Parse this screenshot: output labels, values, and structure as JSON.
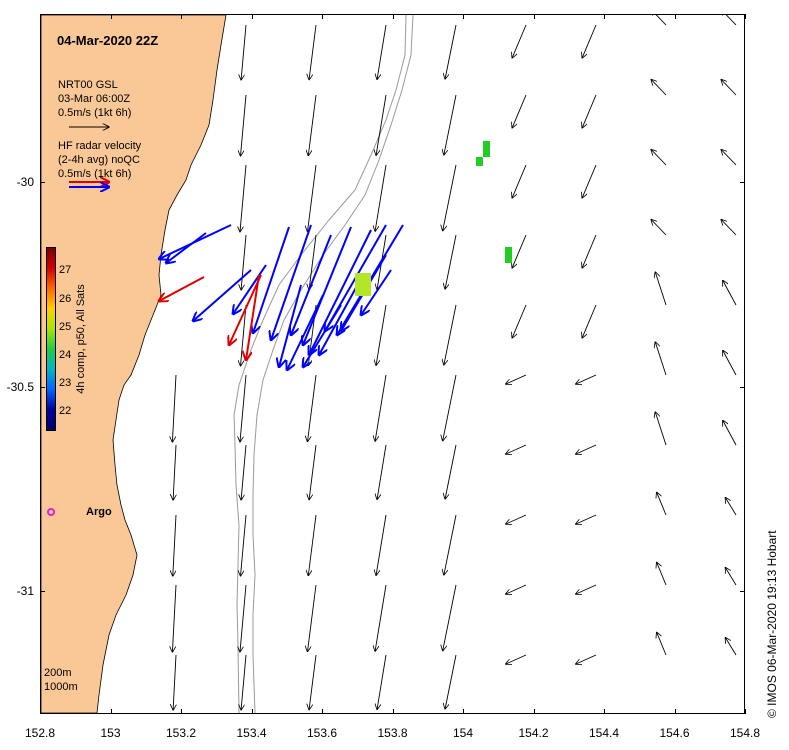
{
  "title": "04-Mar-2020 22Z",
  "legend": {
    "model_lines": [
      "NRT00 GSL",
      "03-Mar 06:00Z",
      "0.5m/s (1kt 6h)"
    ],
    "radar_lines": [
      "HF radar velocity",
      "(2-4h avg) noQC",
      "0.5m/s (1kt 6h)"
    ]
  },
  "colorbar": {
    "label": "4h comp, p50, All Sats",
    "ticks": [
      "27",
      "26",
      "25",
      "24",
      "23",
      "22"
    ],
    "range": [
      21.5,
      27.5
    ]
  },
  "x_axis": {
    "ticks": [
      "152.8",
      "153",
      "153.2",
      "153.4",
      "153.6",
      "153.8",
      "154",
      "154.2",
      "154.4",
      "154.6",
      "154.8"
    ],
    "range": [
      152.8,
      154.8
    ]
  },
  "y_axis": {
    "ticks": [
      "-30",
      "-30.5",
      "-31"
    ],
    "range": [
      -31.3,
      -29.59
    ]
  },
  "argo_label": "Argo",
  "depth_labels": [
    "200m",
    "1000m"
  ],
  "credit": "© IMOS 06-Mar-2020 19:13 Hobart",
  "colors": {
    "land": "#fac896",
    "model_arrow": "#000000",
    "radar_arrow": "#0000ff",
    "radar_arrow_alt": "#e00000",
    "argo": "#e020e0",
    "sst_green": "#22cc22",
    "sst_yellowgreen": "#b4e628"
  }
}
